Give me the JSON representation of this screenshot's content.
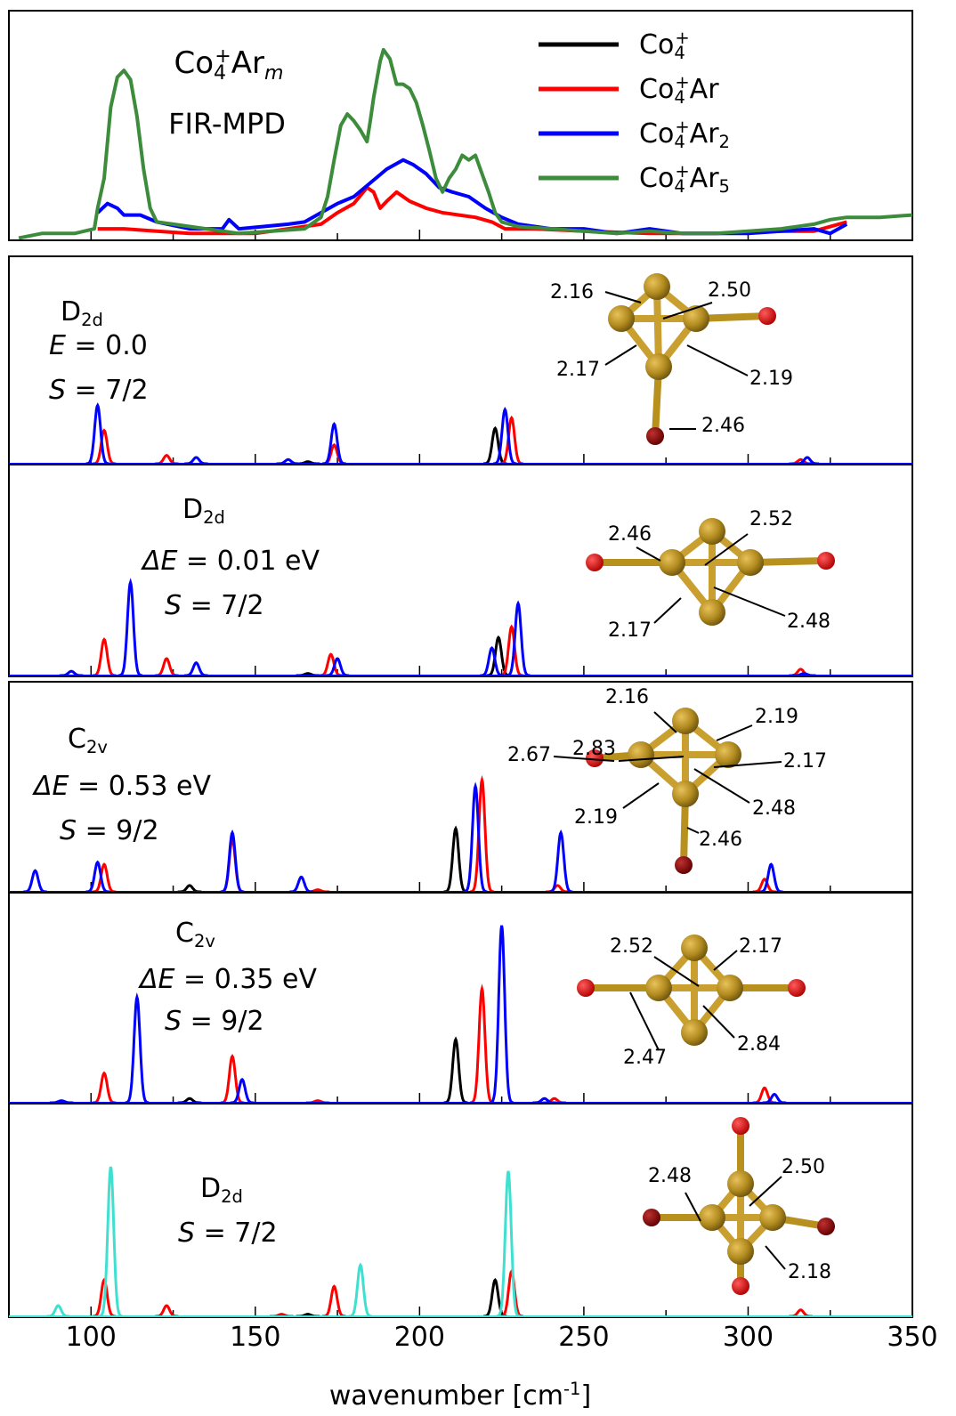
{
  "chart_data": [
    {
      "type": "line",
      "title": [
        [
          "Co",
          ""
        ],
        [
          "4",
          "sub"
        ],
        [
          "+",
          "sup"
        ],
        [
          "Ar",
          ""
        ],
        [
          "m",
          "isub"
        ]
      ],
      "subtitle": "FIR-MPD",
      "legend": [
        {
          "name": [
            [
              "Co",
              ""
            ],
            [
              "4",
              "sub"
            ],
            [
              "+",
              "sup"
            ]
          ],
          "color": "#000000"
        },
        {
          "name": [
            [
              "Co",
              ""
            ],
            [
              "4",
              "sub"
            ],
            [
              "+",
              "sup"
            ],
            [
              "Ar",
              ""
            ]
          ],
          "color": "#ff0000"
        },
        {
          "name": [
            [
              "Co",
              ""
            ],
            [
              "4",
              "sub"
            ],
            [
              "+",
              "sup"
            ],
            [
              "Ar",
              ""
            ],
            [
              "2",
              "sub"
            ]
          ],
          "color": "#0000ff"
        },
        {
          "name": [
            [
              "Co",
              ""
            ],
            [
              "4",
              "sub"
            ],
            [
              "+",
              "sup"
            ],
            [
              "Ar",
              ""
            ],
            [
              "5",
              "sub"
            ]
          ],
          "color": "#3c8c3c"
        }
      ],
      "ylim": [
        0,
        100
      ],
      "series": [
        {
          "color": "#ff0000",
          "x": [
            102,
            110,
            120,
            130,
            140,
            150,
            160,
            170,
            175,
            180,
            184,
            186,
            188,
            190,
            193,
            197,
            202,
            207,
            212,
            217,
            222,
            226,
            235,
            250,
            270,
            290,
            310,
            320,
            330
          ],
          "values": [
            5,
            5,
            4,
            3,
            3,
            3,
            5,
            7,
            12,
            16,
            23,
            21,
            14,
            17,
            21,
            17,
            14,
            12,
            11,
            10,
            8,
            5,
            5,
            4,
            3,
            3,
            4,
            4,
            8
          ]
        },
        {
          "color": "#0000ff",
          "x": [
            102,
            105,
            108,
            110,
            115,
            120,
            130,
            140,
            142,
            145,
            160,
            165,
            170,
            175,
            180,
            185,
            190,
            195,
            198,
            202,
            206,
            210,
            215,
            220,
            225,
            230,
            240,
            250,
            260,
            270,
            280,
            290,
            300,
            310,
            320,
            325,
            330
          ],
          "values": [
            12,
            16,
            14,
            11,
            11,
            8,
            5,
            5,
            9,
            5,
            7,
            8,
            12,
            16,
            19,
            25,
            31,
            35,
            33,
            29,
            23,
            21,
            19,
            14,
            10,
            7,
            5,
            5,
            3,
            5,
            3,
            3,
            3,
            4,
            5,
            3,
            7
          ]
        },
        {
          "color": "#3c8c3c",
          "x": [
            78,
            85,
            95,
            101,
            102,
            104,
            106,
            108,
            110,
            112,
            114,
            116,
            118,
            120,
            125,
            135,
            145,
            155,
            165,
            170,
            172,
            174,
            176,
            178,
            180,
            182,
            184,
            185,
            186,
            188,
            189,
            191,
            193,
            195,
            197,
            199,
            201,
            203,
            205,
            207,
            209,
            211,
            213,
            215,
            217,
            219,
            221,
            223,
            225,
            230,
            240,
            250,
            260,
            270,
            280,
            290,
            300,
            310,
            320,
            325,
            330,
            340,
            350
          ],
          "values": [
            1,
            3,
            3,
            5,
            14,
            27,
            58,
            71,
            74,
            70,
            54,
            31,
            14,
            8,
            7,
            5,
            3,
            4,
            5,
            10,
            19,
            35,
            50,
            55,
            52,
            48,
            43,
            52,
            62,
            78,
            83,
            79,
            68,
            68,
            66,
            60,
            50,
            39,
            27,
            21,
            27,
            31,
            37,
            35,
            37,
            29,
            21,
            12,
            8,
            6,
            5,
            4,
            3,
            4,
            3,
            3,
            4,
            5,
            7,
            9,
            10,
            10,
            11
          ]
        }
      ]
    },
    {
      "type": "peaks",
      "labels": [
        [
          [
            "D",
            ""
          ],
          [
            "2d",
            "sub"
          ]
        ],
        [
          [
            "E",
            "i"
          ],
          [
            " = 0.0",
            ""
          ]
        ],
        [
          [
            "S",
            "i"
          ],
          [
            " = 7/2",
            ""
          ]
        ]
      ],
      "bond_labels": [
        "2.16",
        "2.50",
        "2.17",
        "2.19",
        "2.46"
      ],
      "ylim": [
        0,
        100
      ],
      "series": [
        {
          "color": "#000000",
          "x": [
            166,
            223
          ],
          "values": [
            1,
            17
          ]
        },
        {
          "color": "#ff0000",
          "x": [
            104,
            123,
            174,
            228,
            316
          ],
          "values": [
            16,
            4,
            9,
            22,
            2
          ]
        },
        {
          "color": "#0000ff",
          "x": [
            102,
            132,
            160,
            174,
            226,
            318
          ],
          "values": [
            28,
            3,
            2,
            19,
            26,
            3
          ]
        }
      ]
    },
    {
      "type": "peaks",
      "labels": [
        [
          [
            "D",
            ""
          ],
          [
            "2d",
            "sub"
          ]
        ],
        [
          [
            "ΔE",
            "i"
          ],
          [
            " = 0.01 eV",
            ""
          ]
        ],
        [
          [
            "S",
            "i"
          ],
          [
            " = 7/2",
            ""
          ]
        ]
      ],
      "bond_labels": [
        "2.46",
        "2.52",
        "2.17",
        "2.48"
      ],
      "ylim": [
        0,
        100
      ],
      "series": [
        {
          "color": "#000000",
          "x": [
            166,
            224
          ],
          "values": [
            1,
            18
          ]
        },
        {
          "color": "#ff0000",
          "x": [
            104,
            123,
            173,
            228,
            316
          ],
          "values": [
            17,
            8,
            10,
            23,
            3
          ]
        },
        {
          "color": "#0000ff",
          "x": [
            94,
            112,
            132,
            175,
            222,
            230,
            317
          ],
          "values": [
            2,
            44,
            6,
            8,
            13,
            34,
            1
          ]
        }
      ]
    },
    {
      "type": "peaks",
      "labels": [
        [
          [
            "C",
            ""
          ],
          [
            "2v",
            "sub"
          ]
        ],
        [
          [
            "ΔE",
            "i"
          ],
          [
            " = 0.53 eV",
            ""
          ]
        ],
        [
          [
            "S",
            "i"
          ],
          [
            " = 9/2",
            ""
          ]
        ]
      ],
      "bond_labels": [
        "2.16",
        "2.19",
        "2.67",
        "2.83",
        "2.17",
        "2.48",
        "2.19",
        "2.46"
      ],
      "ylim": [
        0,
        100
      ],
      "series": [
        {
          "color": "#000000",
          "x": [
            130,
            211
          ],
          "values": [
            3,
            30
          ]
        },
        {
          "color": "#ff0000",
          "x": [
            104,
            143,
            169,
            219,
            242,
            305
          ],
          "values": [
            13,
            25,
            1,
            53,
            3,
            6
          ]
        },
        {
          "color": "#0000ff",
          "x": [
            83,
            102,
            143,
            164,
            217,
            243,
            307
          ],
          "values": [
            10,
            14,
            28,
            7,
            50,
            28,
            13
          ]
        }
      ]
    },
    {
      "type": "peaks",
      "labels": [
        [
          [
            "C",
            ""
          ],
          [
            "2v",
            "sub"
          ]
        ],
        [
          [
            "ΔE",
            "i"
          ],
          [
            " = 0.35 eV",
            ""
          ]
        ],
        [
          [
            "S",
            "i"
          ],
          [
            " = 9/2",
            ""
          ]
        ]
      ],
      "bond_labels": [
        "2.52",
        "2.17",
        "2.47",
        "2.84"
      ],
      "ylim": [
        0,
        100
      ],
      "series": [
        {
          "color": "#000000",
          "x": [
            130,
            211
          ],
          "values": [
            2,
            30
          ]
        },
        {
          "color": "#ff0000",
          "x": [
            104,
            143,
            169,
            219,
            241,
            305
          ],
          "values": [
            14,
            22,
            1,
            54,
            2,
            7
          ]
        },
        {
          "color": "#0000ff",
          "x": [
            91,
            114,
            146,
            225,
            238,
            308
          ],
          "values": [
            1,
            50,
            11,
            84,
            2,
            4
          ]
        }
      ]
    },
    {
      "type": "peaks",
      "labels": [
        [
          [
            "D",
            ""
          ],
          [
            "2d",
            "sub"
          ]
        ],
        [
          [
            "S",
            "i"
          ],
          [
            " = 7/2",
            ""
          ]
        ]
      ],
      "bond_labels": [
        "2.48",
        "2.50",
        "2.18"
      ],
      "ylim": [
        0,
        100
      ],
      "series": [
        {
          "color": "#000000",
          "x": [
            166,
            223
          ],
          "values": [
            1,
            17
          ]
        },
        {
          "color": "#ff0000",
          "x": [
            104,
            123,
            158,
            174,
            228,
            316
          ],
          "values": [
            17,
            5,
            1,
            14,
            21,
            3
          ]
        },
        {
          "color": "#40e0d0",
          "x": [
            90,
            106,
            182,
            227
          ],
          "values": [
            5,
            70,
            24,
            68
          ]
        }
      ],
      "xlim": [
        75,
        350
      ],
      "xticks": [
        100,
        150,
        200,
        250,
        300,
        350
      ],
      "xminor_ticks": [
        125,
        175,
        225,
        275,
        325
      ],
      "xlabel": [
        [
          "wavenumber [cm",
          ""
        ],
        [
          "-1",
          "sup"
        ],
        [
          "]",
          ""
        ]
      ]
    }
  ]
}
